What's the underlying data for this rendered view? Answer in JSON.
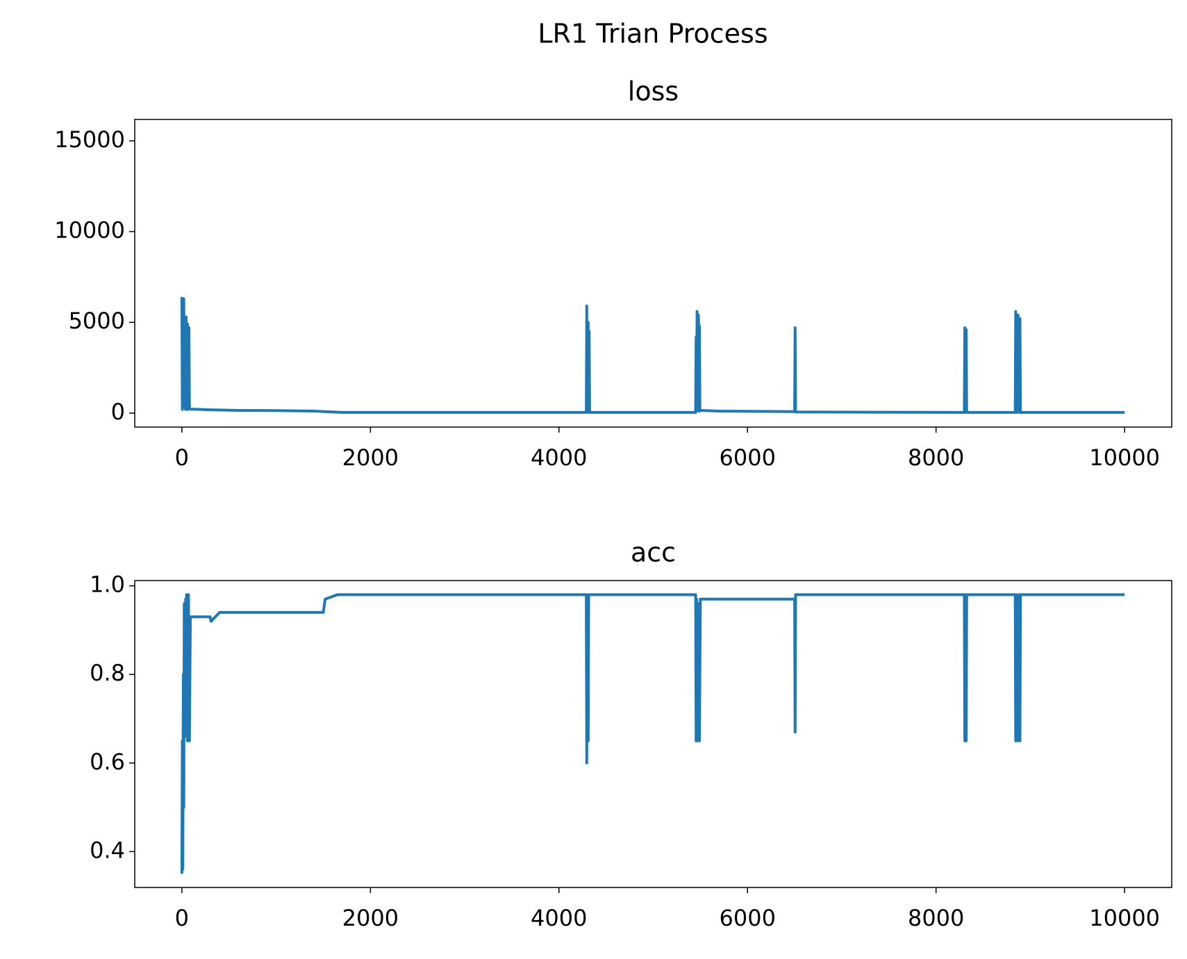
{
  "title": "LR1 Trian Process",
  "chart_data": [
    {
      "type": "line",
      "title": "loss",
      "color": "#1f77b4",
      "xlim": [
        -500,
        10500
      ],
      "xticks": [
        0,
        2000,
        4000,
        6000,
        8000,
        10000
      ],
      "ylim": [
        -770,
        16180
      ],
      "yticks": [
        0,
        5000,
        10000,
        15000
      ],
      "x": [
        0,
        5,
        10,
        15,
        20,
        25,
        30,
        40,
        45,
        50,
        60,
        65,
        75,
        80,
        90,
        300,
        600,
        1000,
        1400,
        1600,
        1700,
        4290,
        4295,
        4300,
        4310,
        4315,
        4320,
        4325,
        5450,
        5455,
        5460,
        5465,
        5470,
        5480,
        5485,
        5490,
        5495,
        5700,
        6500,
        6505,
        6510,
        8300,
        8305,
        8310,
        8320,
        8325,
        8840,
        8845,
        8850,
        8870,
        8875,
        8890,
        8895,
        10000
      ],
      "values": [
        6400,
        200,
        5000,
        300,
        6300,
        400,
        3000,
        200,
        5300,
        300,
        4900,
        200,
        4700,
        250,
        220,
        180,
        150,
        140,
        110,
        60,
        40,
        40,
        5900,
        100,
        5000,
        40,
        4500,
        40,
        40,
        4200,
        150,
        5600,
        150,
        5400,
        100,
        4800,
        150,
        110,
        80,
        4700,
        60,
        40,
        4700,
        40,
        4600,
        40,
        40,
        5600,
        40,
        5400,
        40,
        5200,
        40,
        40
      ]
    },
    {
      "type": "line",
      "title": "acc",
      "color": "#1f77b4",
      "xlim": [
        -500,
        10500
      ],
      "xticks": [
        0,
        2000,
        4000,
        6000,
        8000,
        10000
      ],
      "ylim": [
        0.319,
        1.012
      ],
      "yticks": [
        0.4,
        0.6,
        0.8,
        {
          "value": 1,
          "label": "1.0"
        }
      ],
      "x": [
        0,
        5,
        10,
        15,
        20,
        25,
        30,
        40,
        45,
        50,
        60,
        70,
        80,
        90,
        300,
        310,
        400,
        600,
        1500,
        1520,
        1650,
        1800,
        4290,
        4295,
        4300,
        4310,
        4315,
        5450,
        5455,
        5460,
        5470,
        5480,
        5490,
        5500,
        5800,
        6500,
        6505,
        6510,
        8300,
        8305,
        8310,
        8320,
        8325,
        8840,
        8845,
        8850,
        8870,
        8875,
        8890,
        8895,
        10000
      ],
      "values": [
        0.35,
        0.65,
        0.36,
        0.8,
        0.5,
        0.96,
        0.7,
        0.97,
        0.66,
        0.98,
        0.65,
        0.98,
        0.65,
        0.93,
        0.93,
        0.92,
        0.94,
        0.94,
        0.94,
        0.97,
        0.98,
        0.98,
        0.98,
        0.6,
        0.98,
        0.65,
        0.98,
        0.98,
        0.65,
        0.97,
        0.65,
        0.96,
        0.65,
        0.97,
        0.97,
        0.97,
        0.67,
        0.98,
        0.98,
        0.65,
        0.98,
        0.65,
        0.98,
        0.98,
        0.65,
        0.98,
        0.65,
        0.98,
        0.65,
        0.98,
        0.98
      ]
    }
  ]
}
